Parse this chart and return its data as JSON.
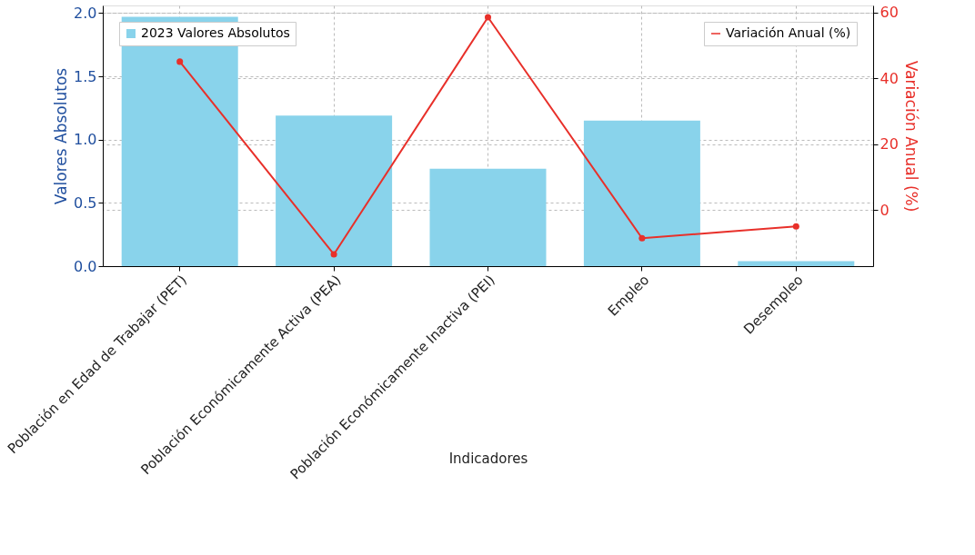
{
  "chart_data": {
    "type": "bar",
    "categories": [
      "Población en Edad de Trabajar (PET)",
      "Población Económicamente Activa (PEA)",
      "Población Económicamente Inactiva (PEI)",
      "Empleo",
      "Desempleo"
    ],
    "series": [
      {
        "name": "2023 Valores Absolutos",
        "color": "#89d3eb",
        "values": [
          1.97,
          1.19,
          0.77,
          1.15,
          0.04
        ]
      },
      {
        "name": "Variación Anual (%)",
        "type": "line",
        "axis": "y2",
        "color": "#e8302a",
        "values": [
          45.1,
          -13.5,
          58.6,
          -8.6,
          -5.0
        ]
      }
    ],
    "xlabel": "Indicadores",
    "ylabel": "Valores Absolutos",
    "y2label": "Variación Anual (%)",
    "ylim": [
      0,
      2.06
    ],
    "yticks": [
      {
        "value": 0,
        "label": "0.0"
      },
      {
        "value": 0.5,
        "label": "0.5"
      },
      {
        "value": 1,
        "label": "1.0"
      },
      {
        "value": 1.5,
        "label": "1.5"
      },
      {
        "value": 2,
        "label": "2.0"
      }
    ],
    "y2lim": [
      -17.1,
      62.2
    ],
    "y2ticks": [
      0,
      20,
      40,
      60
    ],
    "grid": true,
    "legend": "top",
    "marker": "circle",
    "line_style": "solid"
  }
}
